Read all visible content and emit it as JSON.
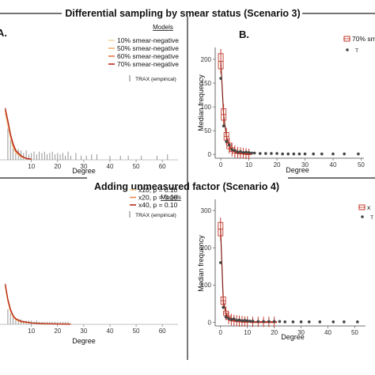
{
  "figure": {
    "frame_color": "#222222",
    "scenario3": {
      "title": "Differential sampling by smear status (Scenario 3)",
      "panel_a": {
        "label": "A.",
        "legend_title": "Models",
        "legend_items": [
          "10% smear-negative",
          "50% smear-negative",
          "60% smear-negative",
          "70% smear-negative"
        ],
        "legend_colors": [
          "#f6d8a8",
          "#f0b070",
          "#e37844",
          "#b52a18"
        ],
        "empirical_label": "TRAX (empirical)"
      },
      "panel_b": {
        "label": "B.",
        "legend_item": "70% sm",
        "legend_point": "T"
      }
    },
    "scenario4": {
      "title": "Adding unmeasured factor (Scenario 4)",
      "panel_c": {
        "legend_title": "Models",
        "legend_items": [
          "x10, p = 0.10",
          "x20, p = 0.10",
          "x40, p = 0.10"
        ],
        "legend_colors": [
          "#f5cd95",
          "#e78a4e",
          "#b52a18"
        ],
        "empirical_label": "TRAX (empirical)"
      },
      "panel_d": {
        "legend_item": "x",
        "legend_point": "T"
      }
    }
  },
  "chart_data": [
    {
      "id": "A",
      "type": "line",
      "xlabel": "Degree",
      "ylabel": "",
      "xlim": [
        -2,
        66
      ],
      "x_ticks": [
        10,
        20,
        30,
        40,
        50,
        60
      ],
      "y_ticks": [],
      "series": [
        {
          "name": "10% smear-negative",
          "x": [
            0,
            1,
            2,
            3,
            4,
            6,
            8,
            10
          ],
          "y": [
            0.34,
            0.25,
            0.16,
            0.09,
            0.05,
            0.02,
            0.01,
            0.005
          ]
        },
        {
          "name": "50% smear-negative",
          "x": [
            0,
            1,
            2,
            3,
            4,
            6,
            8,
            10
          ],
          "y": [
            0.36,
            0.27,
            0.17,
            0.1,
            0.06,
            0.025,
            0.01,
            0.005
          ]
        },
        {
          "name": "60% smear-negative",
          "x": [
            0,
            1,
            2,
            3,
            4,
            6,
            8,
            10
          ],
          "y": [
            0.37,
            0.28,
            0.18,
            0.11,
            0.06,
            0.025,
            0.01,
            0.005
          ]
        },
        {
          "name": "70% smear-negative",
          "x": [
            0,
            1,
            2,
            3,
            4,
            6,
            8,
            10
          ],
          "y": [
            0.38,
            0.29,
            0.19,
            0.12,
            0.07,
            0.03,
            0.01,
            0.005
          ]
        }
      ],
      "empirical_x": [
        1,
        2,
        3,
        4,
        5,
        6,
        7,
        8,
        9,
        10,
        11,
        12,
        13,
        14,
        15,
        16,
        17,
        18,
        19,
        20,
        21,
        22,
        23,
        24,
        25,
        27,
        29,
        31,
        33,
        35,
        40,
        44,
        47,
        52,
        58,
        62
      ],
      "empirical_h": [
        0.23,
        0.15,
        0.11,
        0.08,
        0.08,
        0.07,
        0.05,
        0.07,
        0.04,
        0.05,
        0.06,
        0.04,
        0.06,
        0.05,
        0.06,
        0.04,
        0.05,
        0.06,
        0.04,
        0.05,
        0.04,
        0.05,
        0.03,
        0.06,
        0.03,
        0.05,
        0.03,
        0.03,
        0.04,
        0.04,
        0.03,
        0.03,
        0.03,
        0.03,
        0.03,
        0.04
      ]
    },
    {
      "id": "B",
      "type": "scatter",
      "xlabel": "Degree",
      "ylabel": "Median frequency",
      "xlim": [
        -2,
        51
      ],
      "ylim": [
        -8,
        225
      ],
      "x_ticks": [
        0,
        10,
        20,
        30,
        40,
        50
      ],
      "y_ticks": [
        0,
        50,
        100,
        150,
        200
      ],
      "model": {
        "name": "70% smear-negative",
        "x": [
          0,
          1,
          2,
          3,
          4,
          5,
          6,
          7,
          8,
          9,
          10
        ],
        "y": [
          196,
          84,
          38,
          18,
          10,
          6,
          4,
          3,
          2,
          2,
          1
        ],
        "lo": [
          180,
          72,
          30,
          12,
          6,
          3,
          2,
          1,
          1,
          0,
          0
        ],
        "hi": [
          212,
          96,
          46,
          24,
          14,
          9,
          6,
          5,
          4,
          3,
          2
        ]
      },
      "empirical": {
        "x": [
          0,
          1,
          2,
          3,
          4,
          5,
          6,
          7,
          8,
          9,
          10,
          11,
          12,
          14,
          16,
          18,
          20,
          22,
          24,
          26,
          28,
          30,
          33,
          36,
          40,
          44,
          49
        ],
        "y": [
          160,
          60,
          27,
          20,
          10,
          8,
          5,
          6,
          4,
          5,
          4,
          3,
          3,
          2,
          2,
          2,
          2,
          1,
          1,
          1,
          1,
          1,
          1,
          1,
          1,
          1,
          1
        ]
      }
    },
    {
      "id": "C",
      "type": "line",
      "xlabel": "Degree",
      "ylabel": "",
      "xlim": [
        -2,
        66
      ],
      "x_ticks": [
        10,
        20,
        30,
        40,
        50,
        60
      ],
      "y_ticks": [],
      "series": [
        {
          "name": "x10, p = 0.10",
          "x": [
            0,
            1,
            2,
            3,
            4,
            6,
            10,
            15,
            20,
            25
          ],
          "y": [
            0.3,
            0.18,
            0.1,
            0.06,
            0.035,
            0.02,
            0.01,
            0.005,
            0.003,
            0.002
          ]
        },
        {
          "name": "x20, p = 0.10",
          "x": [
            0,
            1,
            2,
            3,
            4,
            6,
            10,
            15,
            20,
            25
          ],
          "y": [
            0.31,
            0.19,
            0.11,
            0.065,
            0.04,
            0.02,
            0.01,
            0.005,
            0.003,
            0.002
          ]
        },
        {
          "name": "x40, p = 0.10",
          "x": [
            0,
            1,
            2,
            3,
            4,
            6,
            10,
            15,
            20,
            25
          ],
          "y": [
            0.32,
            0.2,
            0.12,
            0.07,
            0.045,
            0.025,
            0.012,
            0.006,
            0.003,
            0.002
          ]
        }
      ],
      "empirical_x": [
        1,
        2,
        3,
        4,
        5,
        6,
        7,
        8,
        9,
        10,
        11,
        12,
        13,
        14,
        15,
        16,
        17,
        18,
        19,
        20,
        21,
        22,
        23,
        24
      ],
      "empirical_h": [
        0.12,
        0.09,
        0.07,
        0.05,
        0.04,
        0.04,
        0.03,
        0.03,
        0.03,
        0.03,
        0.02,
        0.03,
        0.02,
        0.02,
        0.02,
        0.02,
        0.02,
        0.02,
        0.02,
        0.02,
        0.02,
        0.02,
        0.02,
        0.02
      ]
    },
    {
      "id": "D",
      "type": "scatter",
      "xlabel": "Degree",
      "ylabel": "Median frequency",
      "xlim": [
        -2,
        54
      ],
      "ylim": [
        -10,
        330
      ],
      "x_ticks": [
        0,
        10,
        20,
        30,
        40,
        50
      ],
      "y_ticks": [
        0,
        100,
        200,
        300
      ],
      "model": {
        "name": "x40, p = 0.10",
        "x": [
          0,
          1,
          2,
          3,
          4,
          5,
          6,
          7,
          8,
          9,
          10,
          12,
          14,
          16,
          18,
          20
        ],
        "y": [
          250,
          58,
          24,
          12,
          7,
          5,
          4,
          3,
          2,
          2,
          2,
          1,
          1,
          1,
          1,
          1
        ],
        "lo": [
          232,
          48,
          18,
          8,
          4,
          3,
          2,
          1,
          1,
          1,
          1,
          0,
          0,
          0,
          0,
          0
        ],
        "hi": [
          268,
          68,
          30,
          16,
          10,
          7,
          6,
          5,
          4,
          3,
          3,
          2,
          2,
          2,
          2,
          2
        ]
      },
      "empirical": {
        "x": [
          0,
          1,
          2,
          3,
          4,
          5,
          6,
          7,
          8,
          9,
          10,
          11,
          12,
          14,
          16,
          18,
          20,
          22,
          24,
          27,
          30,
          33,
          37,
          42,
          46,
          51
        ],
        "y": [
          160,
          40,
          14,
          10,
          7,
          9,
          5,
          6,
          4,
          5,
          4,
          3,
          3,
          2,
          2,
          2,
          2,
          2,
          1,
          1,
          1,
          1,
          1,
          1,
          1,
          1
        ]
      }
    }
  ]
}
